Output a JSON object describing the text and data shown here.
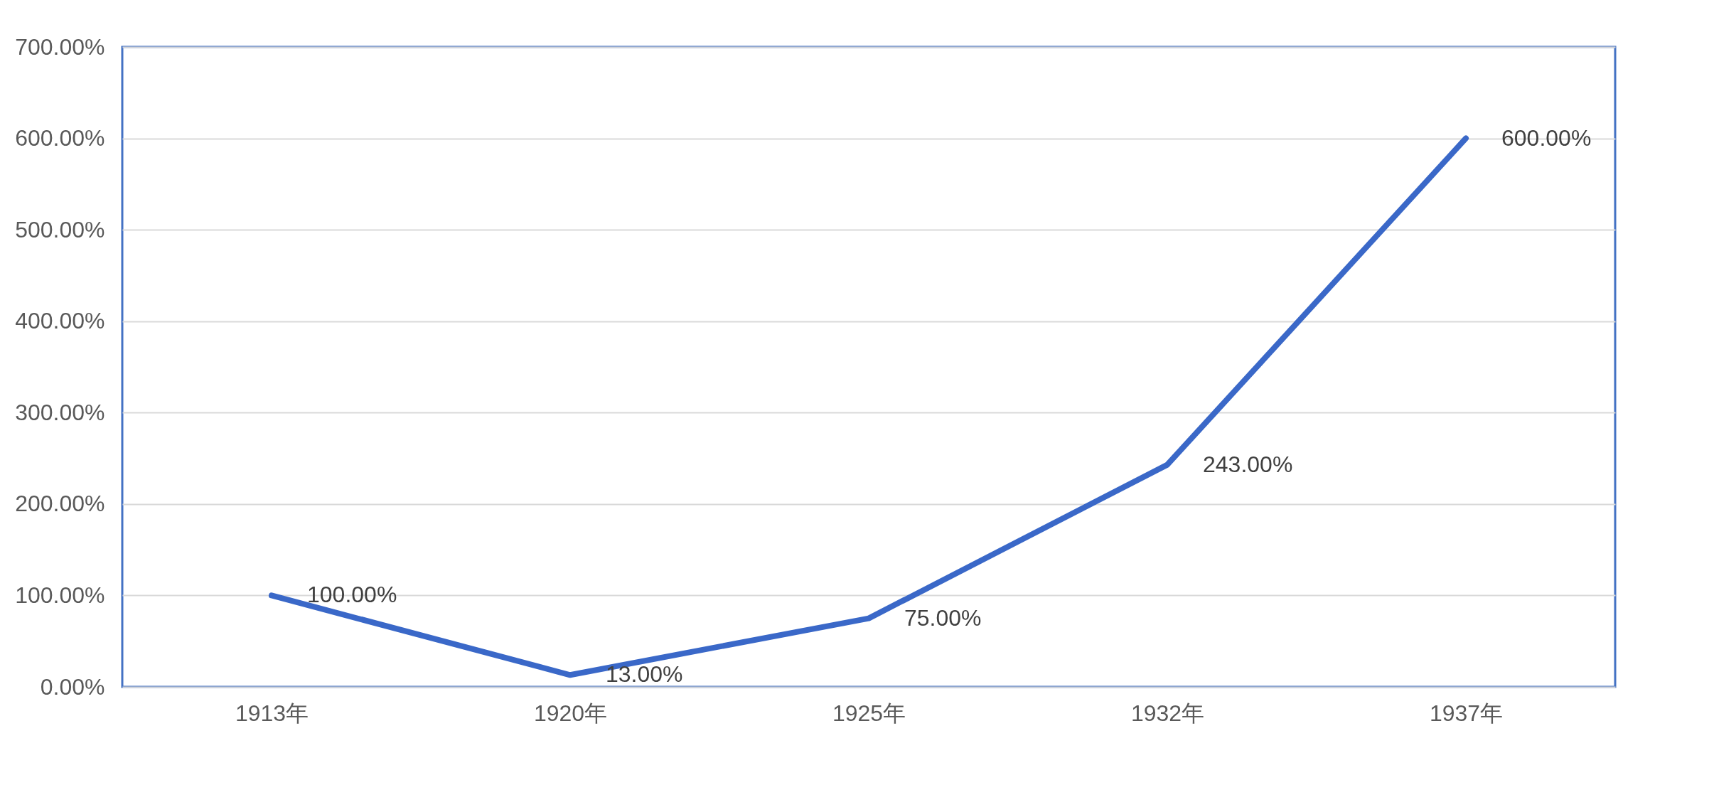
{
  "chart_data": {
    "type": "line",
    "categories": [
      "1913年",
      "1920年",
      "1925年",
      "1932年",
      "1937年"
    ],
    "series": [
      {
        "color": "#3a68c8",
        "values": [
          100,
          13,
          75,
          243,
          600
        ],
        "value_labels": [
          "100.00%",
          "13.00%",
          "75.00%",
          "243.00%",
          "600.00%"
        ]
      }
    ],
    "ylim": [
      0,
      700
    ],
    "yticks": [
      {
        "value": 0,
        "label": "0.00%"
      },
      {
        "value": 100,
        "label": "100.00%"
      },
      {
        "value": 200,
        "label": "200.00%"
      },
      {
        "value": 300,
        "label": "300.00%"
      },
      {
        "value": 400,
        "label": "400.00%"
      },
      {
        "value": 500,
        "label": "500.00%"
      },
      {
        "value": 600,
        "label": "600.00%"
      },
      {
        "value": 700,
        "label": "700.00%"
      }
    ],
    "grid": "y"
  }
}
